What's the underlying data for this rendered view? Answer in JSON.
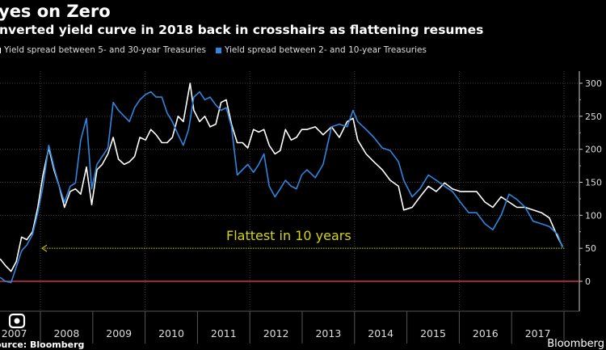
{
  "chart_data": {
    "type": "line",
    "title": "yes on Zero",
    "subtitle": "nverted yield curve in 2018 back in crosshairs as flattening resumes",
    "xlabel": "",
    "ylabel": "",
    "xlim": [
      2007.23,
      2018.25
    ],
    "ylim": [
      -10,
      320
    ],
    "y_ticks": [
      0,
      50,
      100,
      150,
      200,
      250,
      300
    ],
    "x_tick_labels": [
      "2007",
      "2008",
      "2009",
      "2010",
      "2011",
      "2012",
      "2013",
      "2014",
      "2015",
      "2016",
      "2017"
    ],
    "grid": true,
    "legend_position": "top-left",
    "series": [
      {
        "name": "Yield spread between 5- and 30-year Treasuries",
        "color": "#ffffff",
        "x": [
          2007.23,
          2007.33,
          2007.44,
          2007.54,
          2007.64,
          2007.74,
          2007.85,
          2007.95,
          2008.05,
          2008.16,
          2008.26,
          2008.36,
          2008.46,
          2008.57,
          2008.67,
          2008.77,
          2008.88,
          2008.98,
          2009.08,
          2009.18,
          2009.29,
          2009.39,
          2009.49,
          2009.6,
          2009.7,
          2009.8,
          2009.9,
          2010.01,
          2010.11,
          2010.21,
          2010.32,
          2010.42,
          2010.52,
          2010.63,
          2010.73,
          2010.86,
          2010.93,
          2011.04,
          2011.14,
          2011.24,
          2011.35,
          2011.45,
          2011.55,
          2011.65,
          2011.76,
          2011.86,
          2011.96,
          2012.07,
          2012.17,
          2012.27,
          2012.37,
          2012.48,
          2012.58,
          2012.68,
          2012.79,
          2012.89,
          2012.99,
          2013.09,
          2013.25,
          2013.4,
          2013.56,
          2013.71,
          2013.86,
          2013.97,
          2014.06,
          2014.22,
          2014.37,
          2014.53,
          2014.68,
          2014.84,
          2014.94,
          2015.1,
          2015.25,
          2015.41,
          2015.56,
          2015.72,
          2015.87,
          2016.02,
          2016.18,
          2016.33,
          2016.49,
          2016.64,
          2016.8,
          2016.95,
          2017.1,
          2017.26,
          2017.41,
          2017.57,
          2017.72,
          2017.88,
          2017.97
        ],
        "values": [
          34,
          24,
          15,
          30,
          67,
          63,
          75,
          112,
          161,
          202,
          169,
          144,
          112,
          136,
          140,
          132,
          173,
          116,
          169,
          177,
          193,
          218,
          185,
          177,
          181,
          189,
          218,
          214,
          230,
          222,
          210,
          210,
          218,
          250,
          242,
          300,
          259,
          242,
          250,
          234,
          238,
          271,
          275,
          238,
          210,
          210,
          202,
          230,
          226,
          230,
          206,
          193,
          198,
          230,
          214,
          218,
          230,
          230,
          234,
          222,
          234,
          218,
          242,
          247,
          214,
          193,
          181,
          169,
          153,
          144,
          108,
          112,
          128,
          144,
          136,
          149,
          140,
          136,
          136,
          136,
          120,
          112,
          128,
          120,
          112,
          112,
          108,
          104,
          96,
          67,
          53
        ]
      },
      {
        "name": "Yield spread between 2- and 10-year Treasuries",
        "color": "#2e86de",
        "x": [
          2007.23,
          2007.33,
          2007.44,
          2007.54,
          2007.64,
          2007.74,
          2007.85,
          2007.95,
          2008.05,
          2008.16,
          2008.26,
          2008.36,
          2008.46,
          2008.57,
          2008.67,
          2008.77,
          2008.88,
          2008.98,
          2009.08,
          2009.18,
          2009.29,
          2009.39,
          2009.49,
          2009.6,
          2009.7,
          2009.8,
          2009.9,
          2010.01,
          2010.11,
          2010.21,
          2010.32,
          2010.42,
          2010.52,
          2010.63,
          2010.73,
          2010.83,
          2010.93,
          2011.04,
          2011.14,
          2011.24,
          2011.35,
          2011.45,
          2011.55,
          2011.65,
          2011.76,
          2011.86,
          2011.96,
          2012.07,
          2012.17,
          2012.27,
          2012.37,
          2012.48,
          2012.58,
          2012.68,
          2012.79,
          2012.89,
          2012.99,
          2013.09,
          2013.25,
          2013.4,
          2013.56,
          2013.71,
          2013.86,
          2013.97,
          2014.06,
          2014.22,
          2014.37,
          2014.53,
          2014.68,
          2014.84,
          2014.94,
          2015.1,
          2015.25,
          2015.41,
          2015.56,
          2015.72,
          2015.87,
          2016.02,
          2016.18,
          2016.33,
          2016.49,
          2016.64,
          2016.8,
          2016.95,
          2017.1,
          2017.26,
          2017.41,
          2017.57,
          2017.72,
          2017.88,
          2017.97
        ],
        "values": [
          6,
          0,
          -2,
          22,
          46,
          55,
          71,
          104,
          144,
          206,
          173,
          144,
          120,
          144,
          149,
          214,
          247,
          140,
          177,
          189,
          202,
          271,
          259,
          250,
          242,
          263,
          275,
          283,
          287,
          279,
          279,
          255,
          242,
          222,
          206,
          230,
          279,
          287,
          275,
          279,
          267,
          259,
          263,
          234,
          161,
          169,
          177,
          165,
          177,
          193,
          144,
          128,
          140,
          153,
          144,
          140,
          161,
          169,
          157,
          177,
          234,
          238,
          234,
          259,
          242,
          230,
          218,
          202,
          198,
          181,
          153,
          128,
          140,
          161,
          153,
          144,
          136,
          120,
          104,
          104,
          87,
          78,
          100,
          132,
          124,
          112,
          91,
          87,
          83,
          71,
          51
        ]
      }
    ],
    "reference_lines": [
      {
        "value": 0,
        "color": "#d0314a"
      },
      {
        "value": 50,
        "color": "#d6d600",
        "style": "dotted",
        "label": "Flattest in 10 years"
      }
    ]
  },
  "footer": {
    "source": "ource: Bloomberg",
    "brand": "Bloomberg"
  }
}
